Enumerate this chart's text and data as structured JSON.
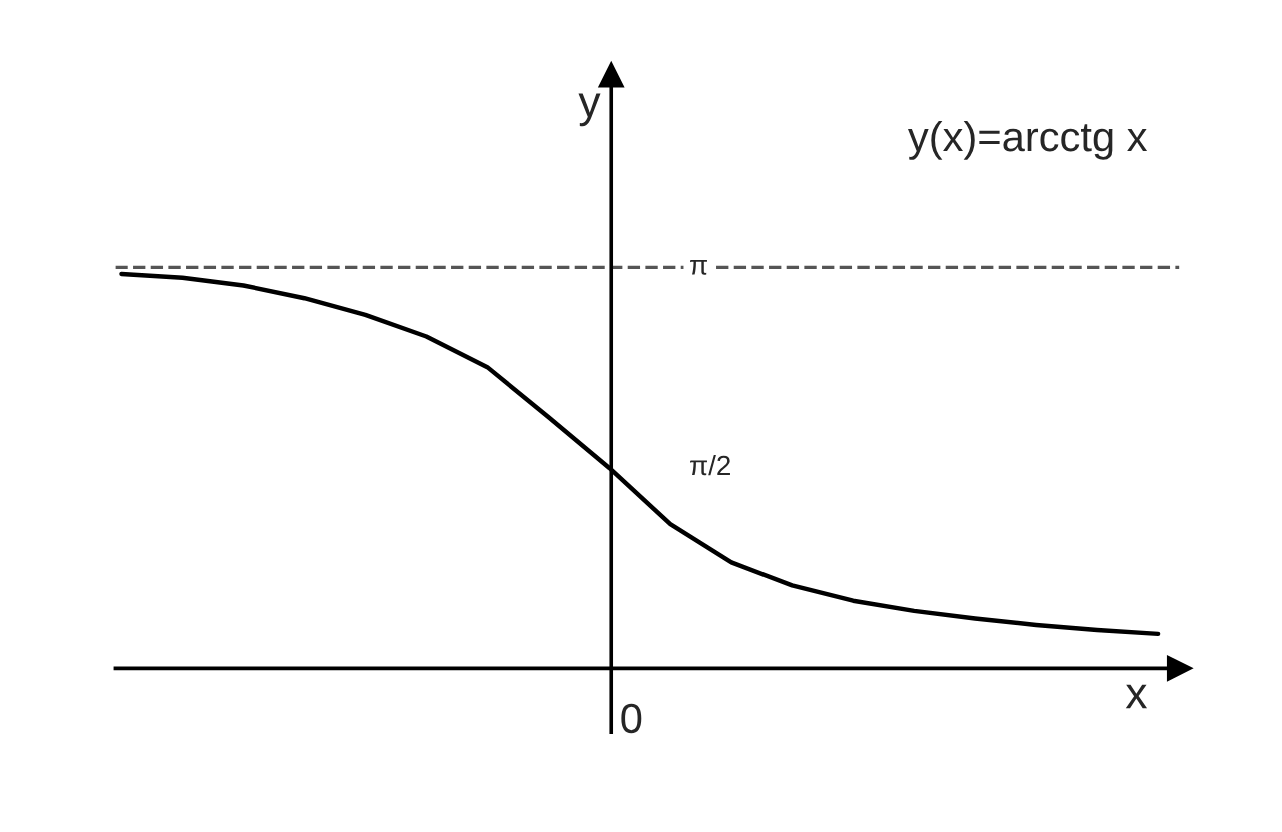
{
  "chart_data": {
    "type": "line",
    "xlabel": "x",
    "ylabel": "y",
    "annotations": [
      "y(x)=arcctg x",
      "0"
    ],
    "categories": [
      null,
      null,
      null,
      null,
      null,
      null,
      null,
      null,
      null,
      null,
      null,
      null,
      null,
      null,
      null,
      null,
      null,
      null
    ],
    "series": [
      {
        "color": "#000000",
        "values": [
          3.09,
          3.06,
          3.0,
          2.9,
          2.77,
          2.6,
          2.36,
          1.97,
          1.57,
          1.13,
          0.83,
          0.65,
          0.53,
          0.45,
          0.39,
          0.34,
          0.3,
          0.27
        ]
      }
    ],
    "ylim": [
      -0.5,
      4.65
    ],
    "yticks": [
      {
        "value": 1.5708,
        "label": "π/2"
      },
      {
        "value": 3.1416,
        "label": "π"
      }
    ],
    "ref_lines": [
      {
        "axis": "y",
        "value": 3.1416,
        "label": null,
        "color": "#555555",
        "line_style": "dashed"
      }
    ],
    "grid": false,
    "marker": "none",
    "line_style": "solid"
  }
}
